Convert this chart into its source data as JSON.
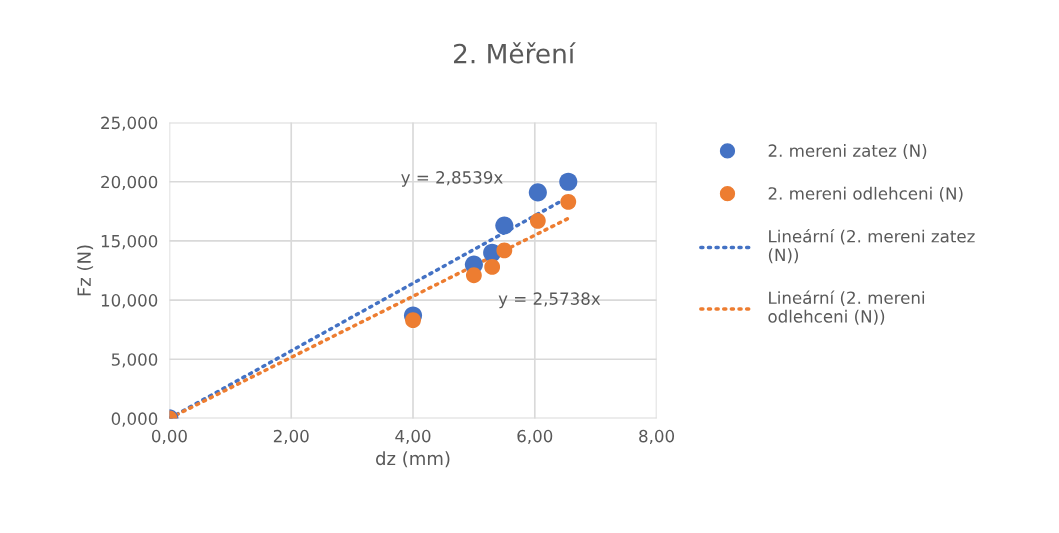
{
  "chart_data": {
    "type": "scatter",
    "title": "2. Měření",
    "xlabel": "dz (mm)",
    "ylabel": "Fz (N)",
    "xlim": [
      0,
      8
    ],
    "xticks": [
      {
        "value": 0,
        "label": "0,00"
      },
      {
        "value": 2,
        "label": "2,00"
      },
      {
        "value": 4,
        "label": "4,00"
      },
      {
        "value": 6,
        "label": "6,00"
      },
      {
        "value": 8,
        "label": "8,00"
      }
    ],
    "ylim": [
      0,
      25
    ],
    "yticks": [
      {
        "value": 0,
        "label": "0,000"
      },
      {
        "value": 5,
        "label": "5,000"
      },
      {
        "value": 10,
        "label": "10,000"
      },
      {
        "value": 15,
        "label": "15,000"
      },
      {
        "value": 20,
        "label": "20,000"
      },
      {
        "value": 25,
        "label": "25,000"
      }
    ],
    "grid": true,
    "legend": "right",
    "series": [
      {
        "name": "2. mereni zatez (N)",
        "marker": "circle",
        "color": "#4472c4",
        "x": [
          0,
          4.0,
          5.0,
          5.3,
          5.5,
          6.05,
          6.55
        ],
        "values": [
          0,
          8.7,
          13.0,
          14.0,
          16.3,
          19.1,
          20.0
        ]
      },
      {
        "name": "2. mereni odlehceni (N)",
        "marker": "circle",
        "color": "#ed7d31",
        "x": [
          0,
          4.0,
          5.0,
          5.3,
          5.5,
          6.05,
          6.55
        ],
        "values": [
          0,
          8.3,
          12.1,
          12.8,
          14.2,
          16.7,
          18.3
        ]
      },
      {
        "name": "Lineární (2. mereni zatez (N))",
        "type": "line",
        "line_style": "dotted",
        "color": "#4472c4",
        "x": [
          0,
          6.55
        ],
        "values": [
          0,
          18.7
        ]
      },
      {
        "name": "Lineární (2. mereni odlehceni (N))",
        "type": "line",
        "line_style": "dotted",
        "color": "#ed7d31",
        "x": [
          0,
          6.55
        ],
        "values": [
          0,
          16.9
        ]
      }
    ],
    "annotations": [
      "y = 2,8539x",
      "y = 2,5738x"
    ]
  }
}
